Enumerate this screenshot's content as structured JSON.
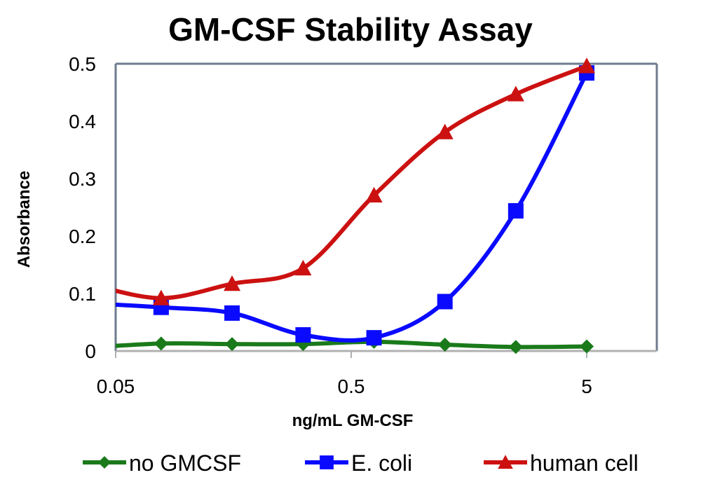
{
  "chart_data": {
    "type": "line",
    "title": "GM-CSF Stability Assay",
    "xlabel": "ng/mL GM-CSF",
    "ylabel": "Absorbance",
    "xscale": "log",
    "xlim": [
      0.05,
      10
    ],
    "ylim": [
      0,
      0.5
    ],
    "x_ticks": [
      {
        "value": 0.05,
        "label": "0.05"
      },
      {
        "value": 0.5,
        "label": "0.5"
      },
      {
        "value": 5,
        "label": "5"
      }
    ],
    "y_ticks": [
      {
        "value": 0,
        "label": "0"
      },
      {
        "value": 0.1,
        "label": "0.1"
      },
      {
        "value": 0.2,
        "label": "0.2"
      },
      {
        "value": 0.3,
        "label": "0.3"
      },
      {
        "value": 0.4,
        "label": "0.4"
      },
      {
        "value": 0.5,
        "label": "0.5"
      }
    ],
    "grid": false,
    "smooth": true,
    "legend_position": "bottom",
    "x": [
      0.039,
      0.078,
      0.156,
      0.3125,
      0.625,
      1.25,
      2.5,
      5
    ],
    "series": [
      {
        "name": "no GMCSF",
        "color": "#1a7a1a",
        "marker": "diamond",
        "values": [
          0.006,
          0.013,
          0.012,
          0.012,
          0.016,
          0.011,
          0.007,
          0.008
        ]
      },
      {
        "name": "E. coli",
        "color": "#0a0aff",
        "marker": "square",
        "values": [
          0.083,
          0.076,
          0.066,
          0.028,
          0.023,
          0.086,
          0.244,
          0.484
        ]
      },
      {
        "name": "human cell",
        "color": "#cc1111",
        "marker": "triangle",
        "values": [
          0.116,
          0.092,
          0.117,
          0.144,
          0.271,
          0.381,
          0.447,
          0.496
        ]
      }
    ]
  }
}
